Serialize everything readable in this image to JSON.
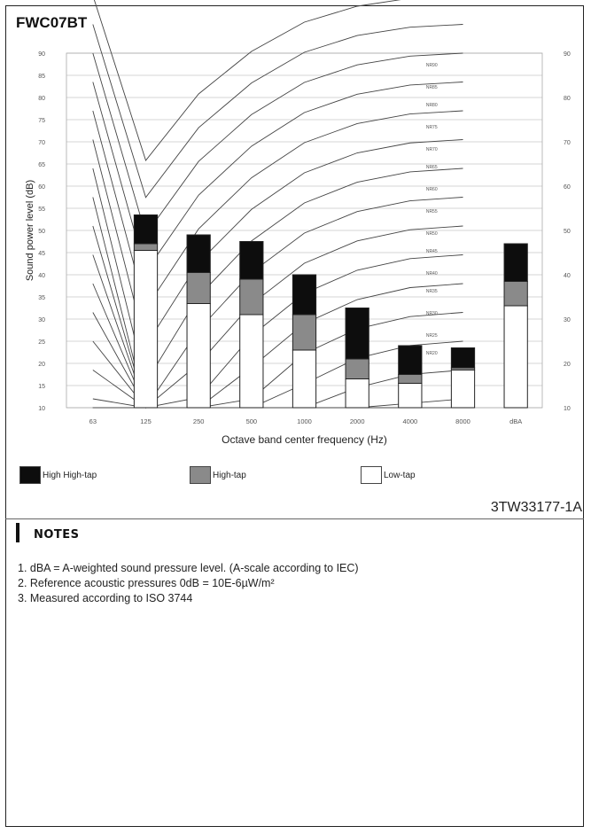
{
  "header": {
    "model": "FWC07BT"
  },
  "chart_data": {
    "type": "bar",
    "stacked": true,
    "ylabel": "Sound power level (dB)",
    "xlabel": "Octave band center frequency (Hz)",
    "ylim": [
      10,
      90
    ],
    "y_ticks": [
      10,
      15,
      20,
      25,
      30,
      35,
      40,
      45,
      50,
      55,
      60,
      65,
      70,
      75,
      80,
      85,
      90
    ],
    "y_right_ticks": [
      10,
      20,
      30,
      40,
      50,
      60,
      70,
      80,
      90
    ],
    "grid": true,
    "categories": [
      "63",
      "125",
      "250",
      "500",
      "1000",
      "2000",
      "4000",
      "8000",
      "dBA"
    ],
    "series": [
      {
        "name": "Low-tap",
        "color": "#ffffff",
        "values": [
          null,
          45.5,
          33.5,
          31,
          23,
          16.5,
          15.5,
          18.5,
          33
        ]
      },
      {
        "name": "High-tap",
        "color": "#8a8a8a",
        "values": [
          null,
          47,
          40.5,
          39,
          31,
          21,
          17.5,
          19,
          38.5
        ]
      },
      {
        "name": "High High-tap",
        "color": "#0d0d0d",
        "values": [
          null,
          53.5,
          49,
          47.5,
          40,
          32.5,
          24,
          23.5,
          47
        ]
      }
    ],
    "nr_curves": [
      {
        "label": "NR90",
        "y_at_8000": 87
      },
      {
        "label": "NR85",
        "y_at_8000": 82
      },
      {
        "label": "NR80",
        "y_at_8000": 78
      },
      {
        "label": "NR75",
        "y_at_8000": 73
      },
      {
        "label": "NR70",
        "y_at_8000": 68
      },
      {
        "label": "NR65",
        "y_at_8000": 64
      },
      {
        "label": "NR60",
        "y_at_8000": 59
      },
      {
        "label": "NR55",
        "y_at_8000": 54
      },
      {
        "label": "NR50",
        "y_at_8000": 49
      },
      {
        "label": "NR45",
        "y_at_8000": 45
      },
      {
        "label": "NR40",
        "y_at_8000": 40
      },
      {
        "label": "NR35",
        "y_at_8000": 36
      },
      {
        "label": "NR30",
        "y_at_8000": 31
      },
      {
        "label": "NR25",
        "y_at_8000": 26
      },
      {
        "label": "NR20",
        "y_at_8000": 22
      },
      {
        "label": "NR15",
        "at": "2000",
        "y": 13
      },
      {
        "label": "NR10",
        "at": "1000",
        "y": 13
      },
      {
        "label": "NR5",
        "at": "500",
        "y": 13
      },
      {
        "label": "NR0",
        "at": "250",
        "y": 15
      }
    ]
  },
  "legend": [
    {
      "label": "High High-tap",
      "color": "#0d0d0d"
    },
    {
      "label": "High-tap",
      "color": "#8a8a8a"
    },
    {
      "label": "Low-tap",
      "color": "#ffffff"
    }
  ],
  "doc_code": "3TW33177-1A",
  "notes": {
    "heading": "NOTES",
    "items": [
      "1.  dBA = A-weighted sound pressure level. (A-scale according to IEC)",
      "2.  Reference acoustic pressures 0dB = 10E-6µW/m²",
      "3.  Measured according to ISO 3744"
    ]
  }
}
